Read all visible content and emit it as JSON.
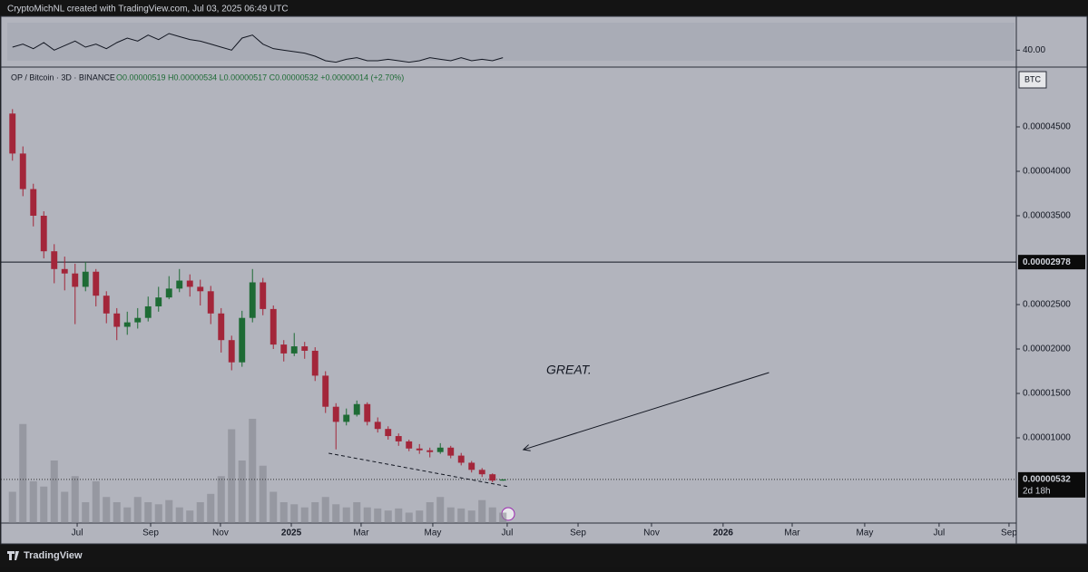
{
  "chart_data": {
    "type": "candlestick",
    "attribution": "CryptoMichNL created with TradingView.com, Jul 03, 2025 06:49 UTC",
    "symbol": "OP / Bitcoin · 3D · BINANCE",
    "ohlc_legend": "O0.00000519 H0.00000534 L0.00000517 C0.00000532 +0.00000014 (+2.70%)",
    "currency": "BTC",
    "footer": "TradingView",
    "categories": [
      null,
      null,
      null,
      null,
      null,
      null,
      null,
      null,
      null,
      null,
      null,
      null,
      null,
      null,
      null,
      null,
      null,
      null,
      null,
      null,
      null,
      null,
      null,
      null,
      null,
      null,
      null,
      null,
      null,
      null,
      null,
      null,
      null,
      null,
      null,
      null,
      null,
      null,
      null,
      null,
      null,
      null,
      null,
      null,
      null,
      null,
      null,
      null
    ],
    "open": [
      4.65e-05,
      4.2e-05,
      3.8e-05,
      3.5e-05,
      3.1e-05,
      2.9e-05,
      2.85e-05,
      2.7e-05,
      2.87e-05,
      2.6e-05,
      2.4e-05,
      2.25e-05,
      2.3e-05,
      2.35e-05,
      2.48e-05,
      2.58e-05,
      2.68e-05,
      2.77e-05,
      2.7e-05,
      2.65e-05,
      2.4e-05,
      2.1e-05,
      1.85e-05,
      2.35e-05,
      2.75e-05,
      2.45e-05,
      2.05e-05,
      1.95e-05,
      2.03e-05,
      1.98e-05,
      1.7e-05,
      1.35e-05,
      1.18e-05,
      1.26e-05,
      1.38e-05,
      1.18e-05,
      1.1e-05,
      1.02e-05,
      9.6e-06,
      8.8e-06,
      8.6e-06,
      8.4e-06,
      8.9e-06,
      8e-06,
      7.2e-06,
      6.4e-06,
      5.9e-06,
      5.19e-06
    ],
    "high": [
      4.7e-05,
      4.28e-05,
      3.86e-05,
      3.55e-05,
      3.18e-05,
      3.04e-05,
      2.96e-05,
      2.98e-05,
      2.9e-05,
      2.65e-05,
      2.46e-05,
      2.42e-05,
      2.46e-05,
      2.59e-05,
      2.7e-05,
      2.82e-05,
      2.9e-05,
      2.84e-05,
      2.78e-05,
      2.71e-05,
      2.46e-05,
      2.15e-05,
      2.43e-05,
      2.9e-05,
      2.8e-05,
      2.49e-05,
      2.1e-05,
      2.18e-05,
      2.08e-05,
      2.02e-05,
      1.75e-05,
      1.39e-05,
      1.33e-05,
      1.42e-05,
      1.4e-05,
      1.23e-05,
      1.13e-05,
      1.05e-05,
      9.8e-06,
      9.3e-06,
      8.9e-06,
      9.4e-06,
      9.1e-06,
      8.3e-06,
      7.4e-06,
      6.6e-06,
      6e-06,
      5.34e-06
    ],
    "low": [
      4.12e-05,
      3.72e-05,
      3.38e-05,
      3.02e-05,
      2.74e-05,
      2.66e-05,
      2.28e-05,
      2.65e-05,
      2.48e-05,
      2.29e-05,
      2.1e-05,
      2.16e-05,
      2.23e-05,
      2.31e-05,
      2.42e-05,
      2.56e-05,
      2.64e-05,
      2.59e-05,
      2.49e-05,
      2.28e-05,
      1.96e-05,
      1.76e-05,
      1.8e-05,
      2.3e-05,
      2.38e-05,
      2e-05,
      1.86e-05,
      1.92e-05,
      1.89e-05,
      1.64e-05,
      1.28e-05,
      8.7e-06,
      1.14e-05,
      1.24e-05,
      1.14e-05,
      1.06e-05,
      9.8e-06,
      9.1e-06,
      8.5e-06,
      8.2e-06,
      7.8e-06,
      8.2e-06,
      7.7e-06,
      6.9e-06,
      6.1e-06,
      5.6e-06,
      5e-06,
      5.17e-06
    ],
    "close": [
      4.2e-05,
      3.8e-05,
      3.5e-05,
      3.1e-05,
      2.9e-05,
      2.85e-05,
      2.7e-05,
      2.87e-05,
      2.6e-05,
      2.4e-05,
      2.25e-05,
      2.3e-05,
      2.35e-05,
      2.48e-05,
      2.58e-05,
      2.68e-05,
      2.77e-05,
      2.7e-05,
      2.65e-05,
      2.4e-05,
      2.1e-05,
      1.85e-05,
      2.35e-05,
      2.75e-05,
      2.45e-05,
      2.05e-05,
      1.95e-05,
      2.03e-05,
      1.98e-05,
      1.7e-05,
      1.35e-05,
      1.18e-05,
      1.26e-05,
      1.38e-05,
      1.18e-05,
      1.1e-05,
      1.02e-05,
      9.6e-06,
      8.8e-06,
      8.6e-06,
      8.4e-06,
      8.9e-06,
      8e-06,
      7.2e-06,
      6.4e-06,
      5.9e-06,
      5.19e-06,
      5.32e-06
    ],
    "volume": [
      30,
      95,
      40,
      35,
      60,
      30,
      45,
      20,
      40,
      25,
      20,
      15,
      25,
      20,
      18,
      22,
      15,
      12,
      20,
      28,
      45,
      90,
      60,
      100,
      55,
      30,
      20,
      18,
      15,
      20,
      25,
      18,
      15,
      20,
      15,
      14,
      12,
      14,
      10,
      12,
      20,
      25,
      15,
      14,
      12,
      22,
      15,
      10
    ],
    "up_color": "#1e6b35",
    "down_color": "#a3263a",
    "volume_color": "#7f828b",
    "xlim": [
      -0.5,
      96.2
    ],
    "xticks": [
      {
        "value": 6.2,
        "label": "Jul"
      },
      {
        "value": 13.24,
        "label": "Sep"
      },
      {
        "value": 19.93,
        "label": "Nov"
      },
      {
        "value": 26.72,
        "label": "2025"
      },
      {
        "value": 33.41,
        "label": "Mar"
      },
      {
        "value": 40.28,
        "label": "May"
      },
      {
        "value": 47.41,
        "label": "Jul"
      },
      {
        "value": 54.2,
        "label": "Sep"
      },
      {
        "value": 61.24,
        "label": "Nov"
      },
      {
        "value": 68.1,
        "label": "2026"
      },
      {
        "value": 74.72,
        "label": "Mar"
      },
      {
        "value": 81.67,
        "label": "May"
      },
      {
        "value": 88.8,
        "label": "Jul"
      },
      {
        "value": 95.5,
        "label": "Sep"
      }
    ],
    "ylim": [
      4.1e-07,
      5.163e-05
    ],
    "yticks": [
      {
        "value": 4.5e-05,
        "label": "0.00004500"
      },
      {
        "value": 4e-05,
        "label": "0.00004000"
      },
      {
        "value": 3.5e-05,
        "label": "0.00003500"
      },
      {
        "value": 2.5e-05,
        "label": "0.00002500"
      },
      {
        "value": 2e-05,
        "label": "0.00002000"
      },
      {
        "value": 1.5e-05,
        "label": "0.00001500"
      },
      {
        "value": 1e-05,
        "label": "0.00001000"
      }
    ],
    "price_line": {
      "value": 2.978e-05,
      "label": "0.00002978"
    },
    "last_price": {
      "value": 5.32e-06,
      "label": "0.00000532",
      "countdown": "2d 18h"
    },
    "trendline": {
      "x": [
        30.3,
        47.6
      ],
      "y": [
        8.27e-06,
        4.49e-06
      ]
    },
    "annotation": {
      "text": "GREAT.",
      "arrow_x": [
        72.5,
        48.96
      ],
      "arrow_y": [
        1.735e-05,
        8.67e-06
      ]
    },
    "rsi": {
      "values": [
        42,
        44,
        41,
        45,
        40,
        43,
        46,
        42,
        44,
        41,
        45,
        48,
        46,
        50,
        47,
        51,
        49,
        47,
        46,
        44,
        42,
        40,
        48,
        50,
        44,
        41,
        40,
        39,
        38,
        36,
        33,
        32,
        34,
        35,
        33,
        33,
        34,
        33,
        32,
        33,
        35,
        34,
        33,
        35,
        33,
        34,
        33,
        35
      ],
      "ylim": [
        30,
        60
      ],
      "yticks": [
        {
          "value": 40,
          "label": "40.00"
        }
      ]
    }
  }
}
